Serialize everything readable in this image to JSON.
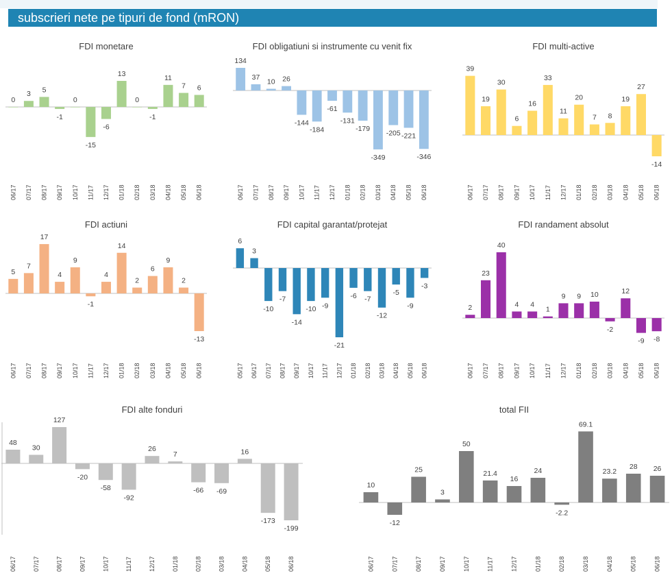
{
  "header": {
    "title": "subscrieri nete pe tipuri de fond (mRON)"
  },
  "chart_data": [
    {
      "type": "bar",
      "title": "FDI monetare",
      "color": "#a9d18e",
      "categories": [
        "06/17",
        "07/17",
        "08/17",
        "09/17",
        "10/17",
        "11/17",
        "12/17",
        "01/18",
        "02/18",
        "03/18",
        "04/18",
        "05/18",
        "06/18"
      ],
      "values": [
        0,
        3,
        5,
        -1,
        0,
        -15,
        -6,
        13,
        0,
        -1,
        11,
        7,
        6
      ],
      "labels": [
        "0",
        "3",
        "5",
        "-1",
        "0",
        "-15",
        "-6",
        "13",
        "0",
        "-1",
        "11",
        "7",
        "6"
      ],
      "ylim": [
        -15,
        13
      ]
    },
    {
      "type": "bar",
      "title": "FDI obligatiuni si instrumente cu venit fix",
      "color": "#9dc3e6",
      "categories": [
        "06/17",
        "07/17",
        "08/17",
        "09/17",
        "10/17",
        "11/17",
        "12/17",
        "01/18",
        "02/18",
        "03/18",
        "04/18",
        "05/18",
        "06/18"
      ],
      "values": [
        134,
        37,
        10,
        26,
        -144,
        -184,
        -61,
        -131,
        -179,
        -349,
        -205,
        -221,
        -346
      ],
      "labels": [
        "134",
        "37",
        "10",
        "26",
        "-144",
        "-184",
        "-61",
        "-131",
        "-179",
        "-349",
        "-205",
        "-221",
        "-346"
      ],
      "ylim": [
        -349,
        134
      ]
    },
    {
      "type": "bar",
      "title": "FDI multi-active",
      "color": "#ffd966",
      "categories": [
        "06/17",
        "07/17",
        "08/17",
        "09/17",
        "10/17",
        "11/17",
        "12/17",
        "01/18",
        "02/18",
        "03/18",
        "04/18",
        "05/18",
        "06/18"
      ],
      "values": [
        39,
        19,
        30,
        6,
        16,
        33,
        11,
        20,
        7,
        8,
        19,
        27,
        -14
      ],
      "labels": [
        "39",
        "19",
        "30",
        "6",
        "16",
        "33",
        "11",
        "20",
        "7",
        "8",
        "19",
        "27",
        "-14"
      ],
      "ylim": [
        -14,
        39
      ]
    },
    {
      "type": "bar",
      "title": "FDI actiuni",
      "color": "#f4b183",
      "categories": [
        "06/17",
        "07/17",
        "08/17",
        "09/17",
        "10/17",
        "11/17",
        "12/17",
        "01/18",
        "02/18",
        "03/18",
        "04/18",
        "05/18",
        "06/18"
      ],
      "values": [
        5,
        7,
        17,
        4,
        9,
        -1,
        4,
        14,
        2,
        6,
        9,
        2,
        -13
      ],
      "labels": [
        "5",
        "7",
        "17",
        "4",
        "9",
        "-1",
        "4",
        "14",
        "2",
        "6",
        "9",
        "2",
        "-13"
      ],
      "ylim": [
        -13,
        17
      ]
    },
    {
      "type": "bar",
      "title": "FDI capital garantat/protejat",
      "color": "#2e86b8",
      "categories": [
        "05/17",
        "06/17",
        "07/17",
        "08/17",
        "09/17",
        "10/17",
        "11/17",
        "12/17",
        "01/18",
        "02/18",
        "03/18",
        "04/18",
        "05/18",
        "06/18"
      ],
      "values": [
        6,
        3,
        -10,
        -7,
        -14,
        -10,
        -9,
        -21,
        -6,
        -7,
        -12,
        -5,
        -9,
        -3
      ],
      "labels": [
        "6",
        "3",
        "-10",
        "-7",
        "-14",
        "-10",
        "-9",
        "-21",
        "-6",
        "-7",
        "-12",
        "-5",
        "-9",
        "-3"
      ],
      "ylim": [
        -21,
        6
      ]
    },
    {
      "type": "bar",
      "title": "FDI randament absolut",
      "color": "#9b30a8",
      "categories": [
        "06/17",
        "07/17",
        "08/17",
        "09/17",
        "10/17",
        "11/17",
        "12/17",
        "01/18",
        "02/18",
        "03/18",
        "04/18",
        "05/18",
        "06/18"
      ],
      "values": [
        2,
        23,
        40,
        4,
        4,
        1,
        9,
        9,
        10,
        -2,
        12,
        -9,
        -8
      ],
      "labels": [
        "2",
        "23",
        "40",
        "4",
        "4",
        "1",
        "9",
        "9",
        "10",
        "-2",
        "12",
        "-9",
        "-8"
      ],
      "ylim": [
        -9,
        40
      ]
    },
    {
      "type": "bar",
      "title": "FDI alte fonduri",
      "color": "#bfbfbf",
      "categories": [
        "06/17",
        "07/17",
        "08/17",
        "09/17",
        "10/17",
        "11/17",
        "12/17",
        "01/18",
        "02/18",
        "03/18",
        "04/18",
        "05/18",
        "06/18"
      ],
      "values": [
        48,
        30,
        127,
        -20,
        -58,
        -92,
        26,
        7,
        -66,
        -69,
        16,
        -173,
        -199
      ],
      "labels": [
        "48",
        "30",
        "127",
        "-20",
        "-58",
        "-92",
        "26",
        "7",
        "-66",
        "-69",
        "16",
        "-173",
        "-199"
      ],
      "ylim": [
        -199,
        127
      ]
    },
    {
      "type": "bar",
      "title": "total FII",
      "color": "#7f7f7f",
      "categories": [
        "06/17",
        "07/17",
        "08/17",
        "09/17",
        "10/17",
        "11/17",
        "12/17",
        "01/18",
        "02/18",
        "03/18",
        "04/18",
        "05/18",
        "06/18"
      ],
      "values": [
        10,
        -12,
        25,
        3,
        50,
        21.4,
        16,
        24,
        -2.2,
        69.1,
        23.2,
        28,
        26
      ],
      "labels": [
        "10",
        "-12",
        "25",
        "3",
        "50",
        "21.4",
        "16",
        "24",
        "-2.2",
        "69.1",
        "23.2",
        "28",
        "26"
      ],
      "ylim": [
        -12,
        69.1
      ]
    }
  ]
}
